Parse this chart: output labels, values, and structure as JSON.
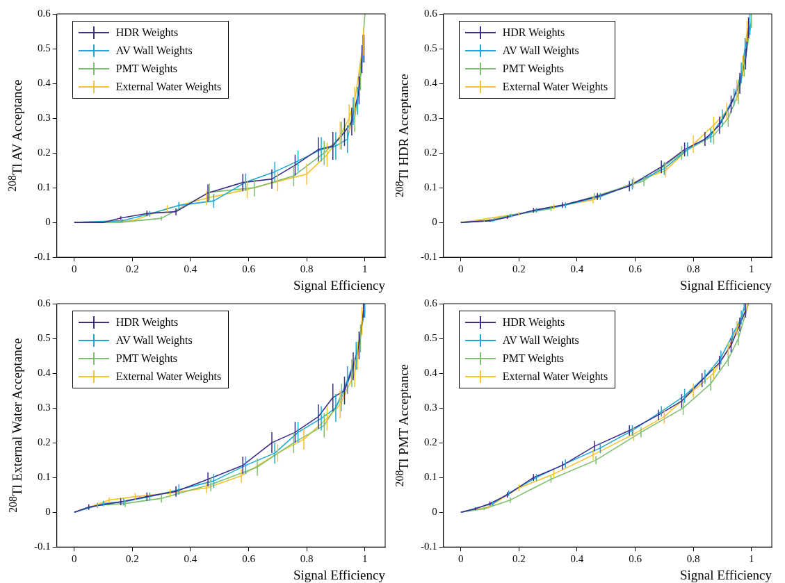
{
  "chart_data": [
    {
      "type": "line",
      "ylabel": "$^{208}$Tl AV Acceptance",
      "xlabel": "Signal Efficiency",
      "xlim": [
        -0.06,
        1.07
      ],
      "ylim": [
        -0.1,
        0.6
      ],
      "xticks": [
        0,
        0.2,
        0.4,
        0.6,
        0.8,
        1
      ],
      "yticks": [
        -0.1,
        0,
        0.1,
        0.2,
        0.3,
        0.4,
        0.5,
        0.6
      ],
      "legend": "top left",
      "grid": false,
      "marker": "none",
      "series": [
        {
          "name": "HDR Weights",
          "color": "#3b2d8c",
          "x": [
            0,
            0.1,
            0.16,
            0.25,
            0.35,
            0.46,
            0.58,
            0.68,
            0.76,
            0.84,
            0.89,
            0.93,
            0.955,
            0.98,
            0.99,
            0.997
          ],
          "values": [
            0,
            0,
            0.013,
            0.026,
            0.031,
            0.085,
            0.115,
            0.125,
            0.165,
            0.21,
            0.22,
            0.26,
            0.29,
            0.38,
            0.47,
            0.5
          ],
          "errors": [
            null,
            null,
            0.005,
            0.008,
            0.01,
            0.025,
            0.025,
            0.028,
            0.03,
            0.035,
            0.04,
            0.04,
            0.04,
            0.04,
            0.04,
            0.04
          ]
        },
        {
          "name": "AV Wall Weights",
          "color": "#1ba8d6",
          "x": [
            0,
            0.165,
            0.26,
            0.36,
            0.48,
            0.59,
            0.69,
            0.77,
            0.85,
            0.9,
            0.94,
            0.96,
            0.975,
            0.993
          ],
          "values": [
            0,
            0.005,
            0.025,
            0.049,
            0.062,
            0.116,
            0.146,
            0.177,
            0.21,
            0.22,
            0.24,
            0.32,
            0.35,
            0.5
          ],
          "errors": [
            null,
            0.005,
            0.008,
            0.01,
            0.02,
            0.025,
            0.028,
            0.03,
            0.035,
            0.04,
            0.04,
            0.04,
            0.04,
            0.04
          ]
        },
        {
          "name": "PMT Weights",
          "color": "#7dbf6e",
          "x": [
            0,
            0.155,
            0.3,
            0.465,
            0.62,
            0.755,
            0.86,
            0.92,
            0.965,
            0.985,
            1.0
          ],
          "values": [
            0,
            0,
            0.012,
            0.087,
            0.1,
            0.134,
            0.2,
            0.25,
            0.3,
            0.42,
            0.6
          ],
          "errors": [
            null,
            null,
            0.006,
            0.025,
            0.025,
            0.03,
            0.035,
            0.04,
            0.04,
            0.04,
            null
          ]
        },
        {
          "name": "External Water Weights",
          "color": "#f5c22d",
          "x": [
            0,
            0.2,
            0.32,
            0.455,
            0.595,
            0.7,
            0.8,
            0.87,
            0.915,
            0.946,
            0.965,
            0.995
          ],
          "values": [
            0,
            0.005,
            0.04,
            0.07,
            0.095,
            0.118,
            0.139,
            0.195,
            0.25,
            0.3,
            0.35,
            0.52
          ],
          "errors": [
            null,
            0.005,
            0.01,
            0.02,
            0.025,
            0.028,
            0.03,
            0.035,
            0.04,
            0.04,
            0.04,
            0.04
          ]
        }
      ]
    },
    {
      "type": "line",
      "ylabel": "$^{208}$Tl HDR Acceptance",
      "xlabel": "Signal Efficiency",
      "xlim": [
        -0.06,
        1.07
      ],
      "ylim": [
        -0.1,
        0.6
      ],
      "xticks": [
        0,
        0.2,
        0.4,
        0.6,
        0.8,
        1
      ],
      "yticks": [
        -0.1,
        0,
        0.1,
        0.2,
        0.3,
        0.4,
        0.5,
        0.6
      ],
      "legend": "top left",
      "grid": false,
      "marker": "none",
      "series": [
        {
          "name": "HDR Weights",
          "color": "#3b2d8c",
          "x": [
            0,
            0.1,
            0.16,
            0.25,
            0.35,
            0.47,
            0.58,
            0.69,
            0.77,
            0.84,
            0.89,
            0.93,
            0.96,
            0.98,
            0.99
          ],
          "values": [
            0,
            0.005,
            0.015,
            0.035,
            0.05,
            0.075,
            0.105,
            0.16,
            0.21,
            0.24,
            0.28,
            0.34,
            0.4,
            0.47,
            0.56
          ],
          "errors": [
            null,
            0.003,
            0.005,
            0.007,
            0.008,
            0.01,
            0.015,
            0.018,
            0.02,
            0.02,
            0.025,
            0.025,
            0.03,
            0.03,
            0.03
          ]
        },
        {
          "name": "AV Wall Weights",
          "color": "#1ba8d6",
          "x": [
            0,
            0.11,
            0.17,
            0.26,
            0.36,
            0.48,
            0.59,
            0.7,
            0.78,
            0.86,
            0.9,
            0.94,
            0.965,
            0.978,
            0.995
          ],
          "values": [
            0,
            0.005,
            0.02,
            0.035,
            0.05,
            0.075,
            0.11,
            0.155,
            0.21,
            0.25,
            0.3,
            0.36,
            0.43,
            0.5,
            0.57
          ],
          "errors": [
            null,
            0.003,
            0.005,
            0.007,
            0.008,
            0.01,
            0.015,
            0.018,
            0.02,
            0.02,
            0.025,
            0.025,
            0.03,
            0.03,
            0.03
          ]
        },
        {
          "name": "PMT Weights",
          "color": "#7dbf6e",
          "x": [
            0,
            0.08,
            0.175,
            0.31,
            0.46,
            0.63,
            0.76,
            0.87,
            0.92,
            0.955,
            0.975,
            1.0
          ],
          "values": [
            0,
            0.005,
            0.02,
            0.04,
            0.075,
            0.12,
            0.2,
            0.25,
            0.3,
            0.37,
            0.45,
            0.58
          ],
          "errors": [
            null,
            0.003,
            0.005,
            0.008,
            0.01,
            0.015,
            0.02,
            0.025,
            0.025,
            0.03,
            0.03,
            0.02
          ]
        },
        {
          "name": "External Water Weights",
          "color": "#f5c22d",
          "x": [
            0,
            0.2,
            0.32,
            0.455,
            0.595,
            0.705,
            0.8,
            0.87,
            0.915,
            0.95,
            0.97,
            0.985
          ],
          "values": [
            0,
            0.025,
            0.045,
            0.065,
            0.115,
            0.15,
            0.225,
            0.28,
            0.32,
            0.38,
            0.45,
            0.55
          ],
          "errors": [
            null,
            0.005,
            0.008,
            0.01,
            0.015,
            0.02,
            0.025,
            0.025,
            0.025,
            0.03,
            0.03,
            0.03
          ]
        }
      ]
    },
    {
      "type": "line",
      "ylabel": "$^{208}$Tl External Water Acceptance",
      "xlabel": "Signal Efficiency",
      "xlim": [
        -0.06,
        1.07
      ],
      "ylim": [
        -0.1,
        0.6
      ],
      "xticks": [
        0,
        0.2,
        0.4,
        0.6,
        0.8,
        1
      ],
      "yticks": [
        -0.1,
        0,
        0.1,
        0.2,
        0.3,
        0.4,
        0.5,
        0.6
      ],
      "legend": "top left",
      "grid": false,
      "marker": "none",
      "series": [
        {
          "name": "HDR Weights",
          "color": "#3b2d8c",
          "x": [
            0,
            0.05,
            0.16,
            0.25,
            0.35,
            0.46,
            0.58,
            0.68,
            0.76,
            0.84,
            0.89,
            0.93,
            0.96,
            0.98,
            0.995
          ],
          "values": [
            0,
            0.015,
            0.03,
            0.045,
            0.06,
            0.095,
            0.135,
            0.2,
            0.23,
            0.275,
            0.33,
            0.35,
            0.42,
            0.48,
            0.58
          ],
          "errors": [
            null,
            0.008,
            0.01,
            0.012,
            0.015,
            0.02,
            0.025,
            0.03,
            0.03,
            0.035,
            0.04,
            0.04,
            0.04,
            0.04,
            0.02
          ]
        },
        {
          "name": "AV Wall Weights",
          "color": "#1ba8d6",
          "x": [
            0,
            0.1,
            0.17,
            0.26,
            0.36,
            0.48,
            0.59,
            0.69,
            0.77,
            0.85,
            0.9,
            0.94,
            0.97,
            1.0
          ],
          "values": [
            0,
            0.025,
            0.03,
            0.045,
            0.065,
            0.09,
            0.135,
            0.17,
            0.23,
            0.27,
            0.3,
            0.38,
            0.45,
            0.58
          ],
          "errors": [
            null,
            0.008,
            0.01,
            0.012,
            0.015,
            0.02,
            0.025,
            0.03,
            0.03,
            0.035,
            0.04,
            0.04,
            0.04,
            0.02
          ]
        },
        {
          "name": "PMT Weights",
          "color": "#7dbf6e",
          "x": [
            0,
            0.08,
            0.175,
            0.3,
            0.47,
            0.63,
            0.755,
            0.86,
            0.92,
            0.955,
            0.985,
            0.998
          ],
          "values": [
            0,
            0.02,
            0.025,
            0.04,
            0.08,
            0.13,
            0.2,
            0.25,
            0.33,
            0.4,
            0.5,
            0.6
          ],
          "errors": [
            null,
            0.008,
            0.01,
            0.012,
            0.02,
            0.025,
            0.03,
            0.035,
            0.04,
            0.04,
            0.04,
            null
          ]
        },
        {
          "name": "External Water Weights",
          "color": "#f5c22d",
          "x": [
            0,
            0.12,
            0.21,
            0.33,
            0.455,
            0.575,
            0.7,
            0.79,
            0.87,
            0.915,
            0.965,
            0.975,
            0.99
          ],
          "values": [
            0,
            0.035,
            0.045,
            0.055,
            0.07,
            0.105,
            0.17,
            0.21,
            0.27,
            0.31,
            0.4,
            0.45,
            0.55
          ],
          "errors": [
            null,
            0.008,
            0.01,
            0.012,
            0.015,
            0.02,
            0.025,
            0.03,
            0.035,
            0.04,
            0.04,
            0.04,
            0.04
          ]
        }
      ]
    },
    {
      "type": "line",
      "ylabel": "$^{208}$Tl PMT Acceptance",
      "xlabel": "Signal Efficiency",
      "xlim": [
        -0.06,
        1.07
      ],
      "ylim": [
        -0.1,
        0.6
      ],
      "xticks": [
        0,
        0.2,
        0.4,
        0.6,
        0.8,
        1
      ],
      "yticks": [
        -0.1,
        0,
        0.1,
        0.2,
        0.3,
        0.4,
        0.5,
        0.6
      ],
      "legend": "top left",
      "grid": false,
      "marker": "none",
      "series": [
        {
          "name": "HDR Weights",
          "color": "#3b2d8c",
          "x": [
            0,
            0.05,
            0.1,
            0.16,
            0.25,
            0.35,
            0.46,
            0.58,
            0.68,
            0.76,
            0.83,
            0.89,
            0.93,
            0.96,
            0.98
          ],
          "values": [
            0,
            0.01,
            0.025,
            0.05,
            0.1,
            0.135,
            0.19,
            0.235,
            0.28,
            0.32,
            0.38,
            0.43,
            0.48,
            0.54,
            0.58
          ],
          "errors": [
            null,
            0.004,
            0.006,
            0.008,
            0.01,
            0.012,
            0.015,
            0.015,
            0.015,
            0.02,
            0.02,
            0.02,
            0.02,
            0.02,
            0.02
          ]
        },
        {
          "name": "AV Wall Weights",
          "color": "#1ba8d6",
          "x": [
            0,
            0.11,
            0.165,
            0.26,
            0.36,
            0.48,
            0.59,
            0.69,
            0.77,
            0.84,
            0.895,
            0.935,
            0.965,
            0.975
          ],
          "values": [
            0,
            0.025,
            0.055,
            0.1,
            0.14,
            0.185,
            0.235,
            0.29,
            0.335,
            0.39,
            0.445,
            0.51,
            0.56,
            0.59
          ],
          "errors": [
            null,
            0.006,
            0.008,
            0.01,
            0.012,
            0.015,
            0.015,
            0.015,
            0.02,
            0.02,
            0.02,
            0.02,
            0.02,
            0.01
          ]
        },
        {
          "name": "PMT Weights",
          "color": "#7dbf6e",
          "x": [
            0,
            0.08,
            0.17,
            0.31,
            0.465,
            0.62,
            0.765,
            0.86,
            0.92,
            0.955,
            0.99
          ],
          "values": [
            0,
            0.01,
            0.035,
            0.095,
            0.15,
            0.23,
            0.3,
            0.37,
            0.44,
            0.5,
            0.6
          ],
          "errors": [
            null,
            0.004,
            0.008,
            0.01,
            0.012,
            0.015,
            0.02,
            0.02,
            0.02,
            0.02,
            null
          ]
        },
        {
          "name": "External Water Weights",
          "color": "#f5c22d",
          "x": [
            0,
            0.095,
            0.2,
            0.32,
            0.455,
            0.595,
            0.7,
            0.8,
            0.87,
            0.92,
            0.95,
            0.985
          ],
          "values": [
            0,
            0.015,
            0.07,
            0.11,
            0.165,
            0.225,
            0.275,
            0.35,
            0.4,
            0.47,
            0.53,
            0.59
          ],
          "errors": [
            null,
            0.005,
            0.01,
            0.012,
            0.015,
            0.02,
            0.02,
            0.02,
            0.02,
            0.02,
            0.02,
            0.01
          ]
        }
      ]
    }
  ]
}
